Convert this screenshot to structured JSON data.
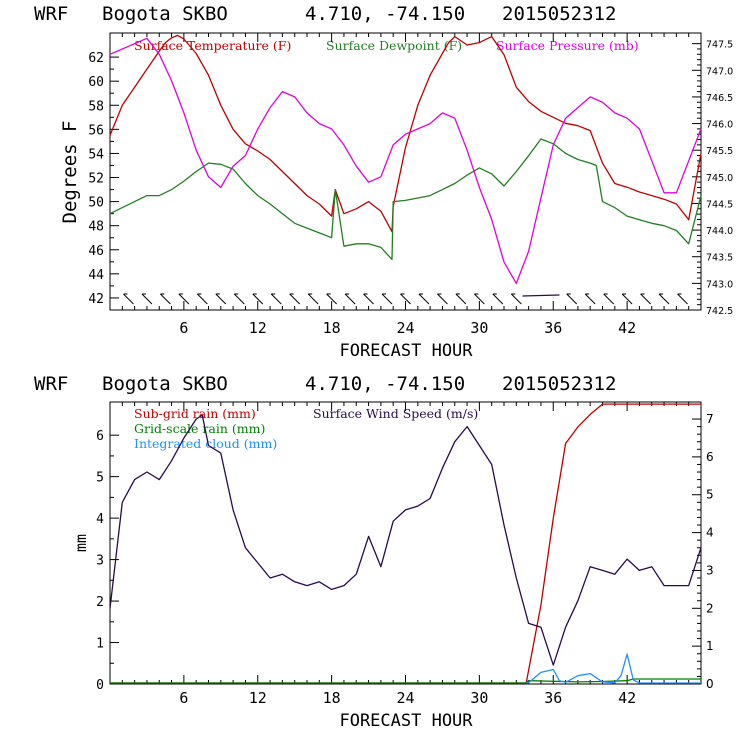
{
  "colors": {
    "temperature": "#c00000",
    "dewpoint": "#208020",
    "pressure": "#e000e0",
    "subgrid_rain": "#c00000",
    "grid_rain": "#008000",
    "cloud": "#1e90ff",
    "wind": "#2a0a4a",
    "axis": "#000000"
  },
  "chart_data": [
    {
      "type": "line",
      "header": {
        "model": "WRF",
        "station": "Bogota SKBO",
        "coords": "4.710, -74.150",
        "init": "2015052312"
      },
      "xlabel": "FORECAST HOUR",
      "ylabel": "Degrees F",
      "xlim": [
        0,
        48
      ],
      "xticks": [
        6,
        12,
        18,
        24,
        30,
        36,
        42
      ],
      "ylim": [
        41,
        64
      ],
      "yticks": [
        42,
        44,
        46,
        48,
        50,
        52,
        54,
        56,
        58,
        60,
        62
      ],
      "y2lim": [
        742.5,
        747.7
      ],
      "y2ticks": [
        "742.5",
        "743.0",
        "743.5",
        "744.0",
        "744.5",
        "745.0",
        "745.5",
        "746.0",
        "746.5",
        "747.0",
        "747.5"
      ],
      "legend": {
        "temperature": "Surface Temperature (F)",
        "dewpoint": "Surface Dewpoint (F)",
        "pressure": "Surface Pressure (mb)"
      },
      "series": [
        {
          "name": "Surface Temperature (F)",
          "axis": "left",
          "x": [
            0,
            1,
            2,
            3,
            4,
            4.5,
            5,
            5.5,
            6,
            7,
            8,
            9,
            10,
            11,
            12,
            13,
            14,
            15,
            16,
            17,
            18,
            18.3,
            19,
            20,
            21,
            22,
            22.9,
            23,
            24,
            25,
            26,
            27,
            27.5,
            28,
            29,
            30,
            31,
            32,
            33,
            34,
            35,
            36,
            37,
            38,
            39,
            40,
            41,
            42,
            43,
            44,
            45,
            46,
            47,
            48
          ],
          "y": [
            55.5,
            58,
            59.5,
            61,
            62.5,
            63.2,
            63.6,
            63.8,
            63.5,
            62.3,
            60.5,
            58,
            56,
            54.8,
            54.2,
            53.5,
            52.5,
            51.5,
            50.5,
            49.8,
            48.8,
            51,
            49,
            49.4,
            50,
            49.2,
            47.5,
            49.6,
            54.5,
            58,
            60.5,
            62.3,
            63.2,
            63.7,
            63,
            63.2,
            63.7,
            62.2,
            59.5,
            58.3,
            57.5,
            57,
            56.5,
            56.3,
            55.9,
            53.2,
            51.5,
            51.2,
            50.8,
            50.5,
            50.2,
            49.8,
            48.5,
            54
          ]
        },
        {
          "name": "Surface Dewpoint (F)",
          "axis": "left",
          "x": [
            0,
            1,
            2,
            3,
            4,
            5,
            6,
            7,
            8,
            9,
            10,
            11,
            12,
            13,
            14,
            15,
            16,
            17,
            18,
            18.3,
            19,
            20,
            21,
            22,
            22.9,
            23,
            24,
            25,
            26,
            27,
            28,
            29,
            30,
            31,
            32,
            33,
            34,
            35,
            36,
            37,
            38,
            39,
            39.5,
            40,
            41,
            42,
            43,
            44,
            45,
            46,
            47,
            48
          ],
          "y": [
            49,
            49.5,
            50,
            50.5,
            50.5,
            51,
            51.7,
            52.5,
            53.2,
            53.1,
            52.7,
            51.5,
            50.5,
            49.8,
            49,
            48.2,
            47.8,
            47.4,
            47,
            51,
            46.3,
            46.5,
            46.5,
            46.2,
            45.2,
            50,
            50.1,
            50.3,
            50.5,
            51,
            51.5,
            52.2,
            52.8,
            52.3,
            51.3,
            52.5,
            53.8,
            55.2,
            54.8,
            54,
            53.5,
            53.2,
            53,
            50,
            49.5,
            48.8,
            48.5,
            48.2,
            48,
            47.6,
            46.5,
            50.5
          ]
        },
        {
          "name": "Surface Pressure (mb)",
          "axis": "right",
          "x": [
            0,
            1,
            2,
            3,
            4,
            5,
            6,
            7,
            8,
            9,
            10,
            11,
            12,
            13,
            14,
            15,
            16,
            17,
            18,
            19,
            20,
            21,
            22,
            23,
            24,
            25,
            26,
            27,
            28,
            29,
            30,
            31,
            32,
            33,
            34,
            35,
            36,
            37,
            38,
            39,
            40,
            41,
            42,
            43,
            44,
            45,
            46,
            47,
            48
          ],
          "y": [
            747.3,
            747.4,
            747.5,
            747.6,
            747.3,
            746.8,
            746.2,
            745.5,
            745,
            744.8,
            745.2,
            745.4,
            745.9,
            746.3,
            746.6,
            746.5,
            746.2,
            746,
            745.9,
            745.6,
            745.2,
            744.9,
            745,
            745.6,
            745.8,
            745.9,
            746,
            746.2,
            746.1,
            745.5,
            744.8,
            744.2,
            743.4,
            743,
            743.6,
            744.6,
            745.6,
            746.1,
            746.3,
            746.5,
            746.4,
            746.2,
            746.1,
            745.9,
            745.3,
            744.7,
            744.7,
            745.3,
            745.9
          ]
        }
      ]
    },
    {
      "type": "line",
      "header": {
        "model": "WRF",
        "station": "Bogota SKBO",
        "coords": "4.710, -74.150",
        "init": "2015052312"
      },
      "xlabel": "FORECAST HOUR",
      "ylabel": "mm",
      "xlim": [
        0,
        48
      ],
      "xticks": [
        6,
        12,
        18,
        24,
        30,
        36,
        42
      ],
      "ylim": [
        0,
        6.8
      ],
      "yticks": [
        0,
        1,
        2,
        3,
        4,
        5,
        6
      ],
      "y2lim": [
        0,
        7.45
      ],
      "y2ticks": [
        0,
        1,
        2,
        3,
        4,
        5,
        6,
        7
      ],
      "legend": {
        "subgrid": "Sub-grid rain (mm)",
        "wind": "Surface Wind Speed (m/s)",
        "grid": "Grid-scale rain (mm)",
        "cloud": "Integrated cloud (mm)"
      },
      "series": [
        {
          "name": "Sub-grid rain (mm)",
          "axis": "left",
          "x": [
            0,
            33.8,
            35,
            36,
            37,
            38,
            39,
            40,
            48
          ],
          "y": [
            0,
            0,
            1.9,
            4,
            5.8,
            6.2,
            6.5,
            6.75,
            6.75
          ]
        },
        {
          "name": "Grid-scale rain (mm)",
          "axis": "left",
          "x": [
            0,
            33.8,
            34,
            38,
            40,
            42,
            42.5,
            48
          ],
          "y": [
            0,
            0,
            0.08,
            0.05,
            0.06,
            0.08,
            0.12,
            0.12
          ]
        },
        {
          "name": "Integrated cloud (mm)",
          "axis": "left",
          "x": [
            33.8,
            34,
            35,
            36,
            36.5,
            37,
            38,
            39,
            40,
            41,
            41.5,
            42,
            42.5,
            43,
            48
          ],
          "y": [
            0,
            0.03,
            0.28,
            0.35,
            0.08,
            0.04,
            0.2,
            0.25,
            0.05,
            0.03,
            0.2,
            0.72,
            0.1,
            0.02,
            0.02
          ]
        },
        {
          "name": "Surface Wind Speed (m/s)",
          "axis": "right",
          "x": [
            0,
            1,
            2,
            3,
            4,
            5,
            6,
            7,
            7.5,
            8,
            9,
            10,
            11,
            12,
            13,
            14,
            15,
            16,
            17,
            18,
            19,
            20,
            21,
            22,
            23,
            24,
            25,
            26,
            27,
            28,
            29,
            30,
            31,
            32,
            33,
            34,
            35,
            36,
            37,
            38,
            39,
            40,
            41,
            42,
            43,
            44,
            45,
            46,
            47,
            48
          ],
          "y": [
            2,
            4.8,
            5.4,
            5.6,
            5.4,
            5.9,
            6.5,
            7,
            7.1,
            6.3,
            6.1,
            4.6,
            3.6,
            3.2,
            2.8,
            2.9,
            2.7,
            2.6,
            2.7,
            2.5,
            2.6,
            2.9,
            3.9,
            3.1,
            4.3,
            4.6,
            4.7,
            4.9,
            5.7,
            6.4,
            6.8,
            6.3,
            5.8,
            4.2,
            2.8,
            1.6,
            1.5,
            0.5,
            1.5,
            2.2,
            3.1,
            3,
            2.9,
            3.3,
            3,
            3.1,
            2.6,
            2.6,
            2.6,
            3.6
          ]
        }
      ]
    }
  ]
}
